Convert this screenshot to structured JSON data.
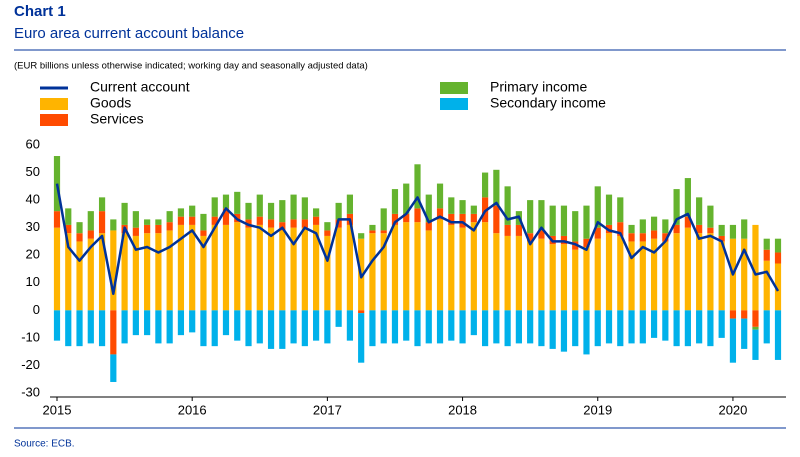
{
  "chart_data": {
    "type": "stacked_bar_line",
    "chart_label": "Chart 1",
    "title": "Euro area current account balance",
    "subtitle": "(EUR billions unless otherwise indicated; working day and seasonally adjusted data)",
    "source": "Source: ECB.",
    "categories": [
      "2015",
      null,
      null,
      null,
      null,
      null,
      null,
      null,
      null,
      null,
      null,
      null,
      "2016",
      null,
      null,
      null,
      null,
      null,
      null,
      null,
      null,
      null,
      null,
      null,
      "2017",
      null,
      null,
      null,
      null,
      null,
      null,
      null,
      null,
      null,
      null,
      null,
      "2018",
      null,
      null,
      null,
      null,
      null,
      null,
      null,
      null,
      null,
      null,
      null,
      "2019",
      null,
      null,
      null,
      null,
      null,
      null,
      null,
      null,
      null,
      null,
      null,
      "2020",
      null,
      null,
      null,
      null
    ],
    "ylim": [
      -30,
      60
    ],
    "yticks": [
      -30,
      -20,
      -10,
      0,
      10,
      20,
      30,
      40,
      50,
      60
    ],
    "series": [
      {
        "name": "Goods",
        "kind": "bar",
        "color": "#ffb400",
        "values": [
          30,
          28,
          25,
          26,
          28,
          29,
          28,
          27,
          28,
          28,
          29,
          31,
          31,
          27,
          31,
          31,
          32,
          30,
          31,
          30,
          29,
          30,
          30,
          31,
          27,
          30,
          31,
          26,
          28,
          28,
          31,
          32,
          32,
          29,
          33,
          31,
          30,
          32,
          32,
          28,
          27,
          27,
          25,
          26,
          24,
          24,
          22,
          23,
          26,
          28,
          27,
          25,
          25,
          26,
          25,
          28,
          30,
          28,
          28,
          25,
          26,
          26,
          31,
          18,
          17
        ]
      },
      {
        "name": "Services",
        "kind": "bar",
        "color": "#ff4b00",
        "values": [
          6,
          3,
          3,
          3,
          8,
          -16,
          3,
          3,
          3,
          3,
          3,
          3,
          3,
          2,
          3,
          6,
          3,
          3,
          3,
          3,
          3,
          3,
          3,
          3,
          2,
          3,
          4,
          -1,
          1,
          1,
          4,
          3,
          5,
          3,
          4,
          4,
          5,
          3,
          9,
          10,
          4,
          4,
          3,
          3,
          3,
          3,
          3,
          3,
          4,
          3,
          5,
          3,
          3,
          3,
          3,
          3,
          4,
          3,
          2,
          2,
          -3,
          -3,
          -6,
          4,
          4
        ]
      },
      {
        "name": "Primary income",
        "kind": "bar",
        "color": "#65b32e",
        "values": [
          20,
          6,
          4,
          7,
          5,
          4,
          8,
          6,
          2,
          2,
          4,
          3,
          4,
          6,
          7,
          5,
          8,
          6,
          8,
          6,
          8,
          9,
          8,
          3,
          3,
          6,
          7,
          2,
          2,
          8,
          9,
          11,
          16,
          10,
          9,
          6,
          5,
          3,
          9,
          13,
          14,
          5,
          12,
          11,
          11,
          11,
          11,
          12,
          15,
          11,
          9,
          3,
          5,
          5,
          5,
          13,
          14,
          10,
          8,
          4,
          5,
          7,
          -1,
          4,
          5
        ]
      },
      {
        "name": "Secondary income",
        "kind": "bar",
        "color": "#00b1ea",
        "values": [
          -11,
          -13,
          -13,
          -12,
          -13,
          -10,
          -12,
          -9,
          -9,
          -12,
          -12,
          -9,
          -8,
          -13,
          -13,
          -9,
          -11,
          -13,
          -12,
          -14,
          -14,
          -12,
          -13,
          -11,
          -12,
          -6,
          -11,
          -18,
          -13,
          -12,
          -12,
          -11,
          -13,
          -12,
          -12,
          -11,
          -12,
          -9,
          -13,
          -12,
          -13,
          -12,
          -12,
          -13,
          -14,
          -15,
          -13,
          -16,
          -13,
          -12,
          -13,
          -12,
          -12,
          -10,
          -11,
          -13,
          -13,
          -12,
          -13,
          -10,
          -16,
          -11,
          -11,
          -12,
          -18
        ]
      },
      {
        "name": "Current account",
        "kind": "line",
        "color": "#003299",
        "values": [
          46,
          23,
          18,
          23,
          27,
          6,
          30,
          22,
          23,
          21,
          23,
          26,
          29,
          23,
          30,
          37,
          33,
          31,
          30,
          27,
          30,
          24,
          30,
          28,
          18,
          33,
          33,
          12,
          18,
          23,
          32,
          35,
          41,
          32,
          34,
          32,
          32,
          29,
          36,
          39,
          33,
          34,
          24,
          30,
          25,
          25,
          24,
          22,
          32,
          29,
          28,
          19,
          23,
          21,
          25,
          33,
          35,
          26,
          27,
          25,
          13,
          22,
          13,
          14,
          7
        ]
      }
    ]
  }
}
